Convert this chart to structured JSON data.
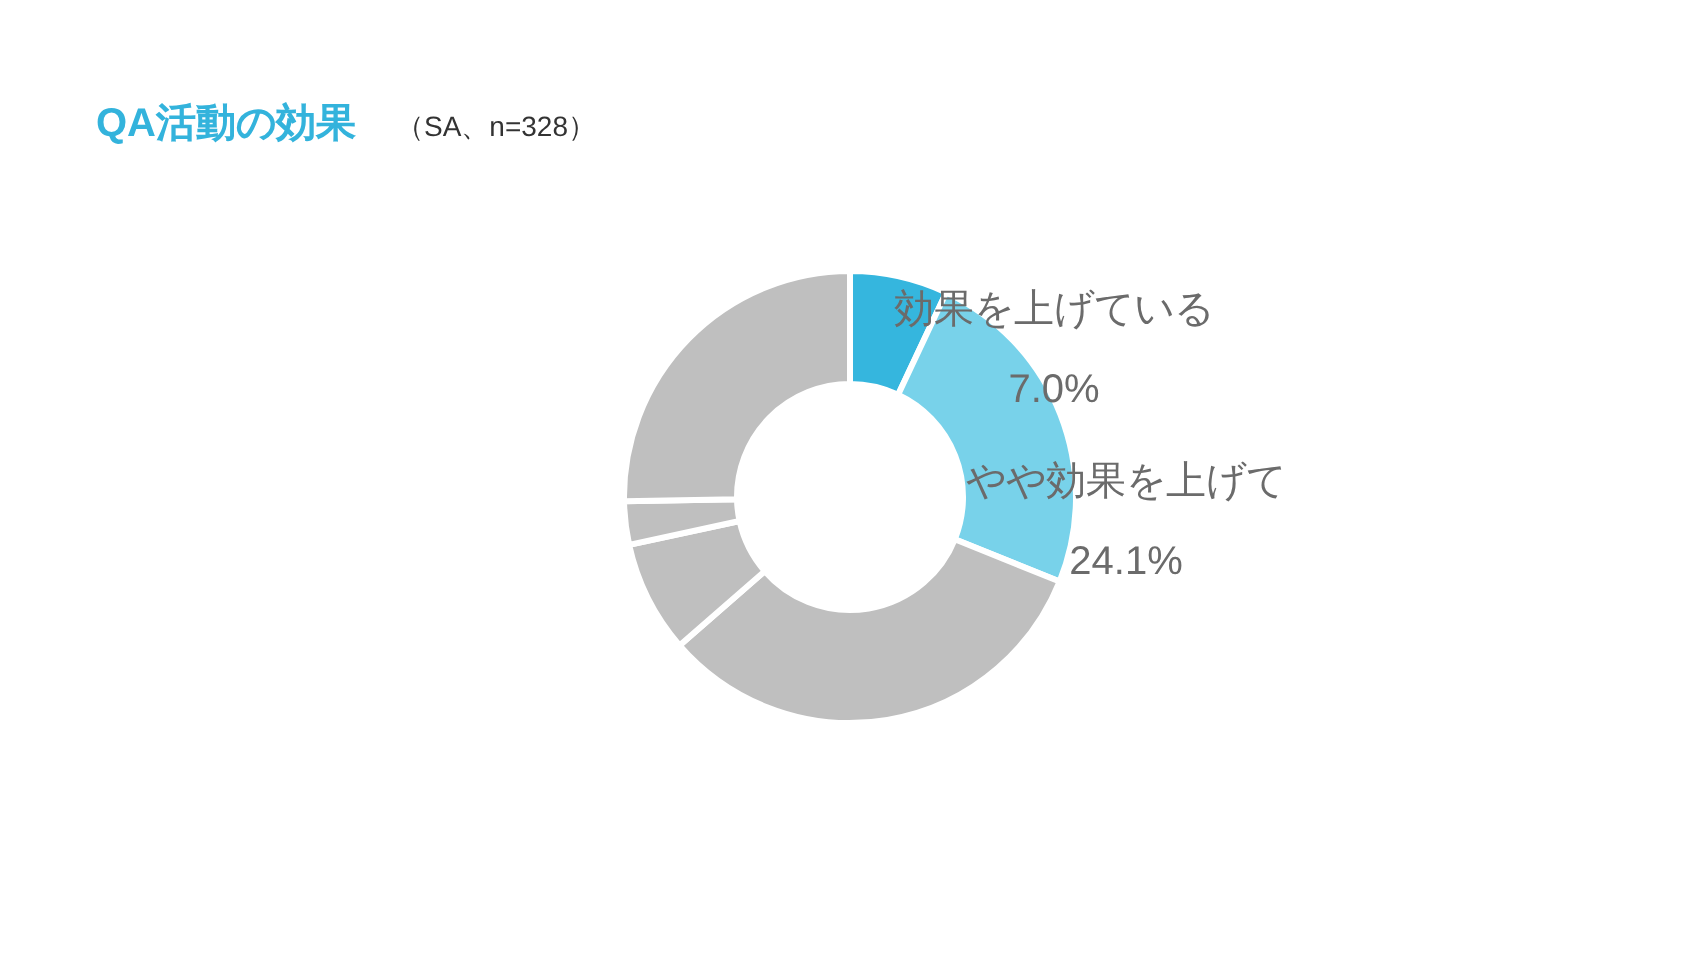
{
  "chart_data": {
    "type": "donut",
    "title": "QA活動の効果",
    "subtitle": "（SA、n=328）",
    "categories": [
      "効果を上げている",
      "やや効果を上げて",
      null,
      null,
      null,
      null
    ],
    "values": [
      7.0,
      24.1,
      32.5,
      8.0,
      3.1,
      25.3
    ],
    "colors": [
      "#35b6de",
      "#78d2ea",
      "#bfbfbf",
      "#bfbfbf",
      "#bfbfbf",
      "#bfbfbf"
    ],
    "value_labels": [
      "7.0%",
      "24.1%",
      null,
      null,
      null,
      null
    ]
  }
}
